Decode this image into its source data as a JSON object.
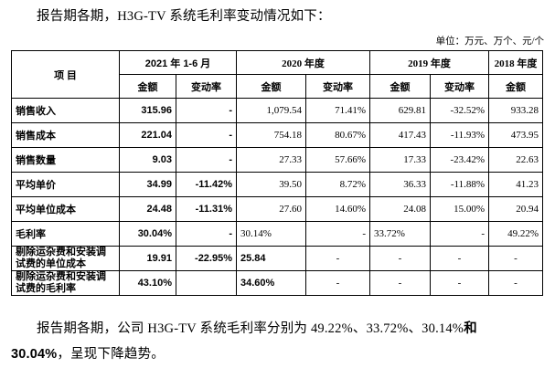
{
  "intro": "报告期各期，H3G-TV 系统毛利率变动情况如下：",
  "unit": "单位：万元、万个、元/个",
  "header": {
    "item": "项 目",
    "periods": [
      "2021 年 1-6 月",
      "2020 年度",
      "2019 年度",
      "2018 年度"
    ],
    "sub": [
      "金额",
      "变动率",
      "金额",
      "变动率",
      "金额",
      "变动率",
      "金额"
    ]
  },
  "rows": [
    {
      "label": "销售收入",
      "cells": [
        "315.96",
        "-",
        "1,079.54",
        "71.41%",
        "629.81",
        "-32.52%",
        "933.28"
      ]
    },
    {
      "label": "销售成本",
      "cells": [
        "221.04",
        "-",
        "754.18",
        "80.67%",
        "417.43",
        "-11.93%",
        "473.95"
      ]
    },
    {
      "label": "销售数量",
      "cells": [
        "9.03",
        "-",
        "27.33",
        "57.66%",
        "17.33",
        "-23.42%",
        "22.63"
      ]
    },
    {
      "label": "平均单价",
      "cells": [
        "34.99",
        "-11.42%",
        "39.50",
        "8.72%",
        "36.33",
        "-11.88%",
        "41.23"
      ]
    },
    {
      "label": "平均单位成本",
      "cells": [
        "24.48",
        "-11.31%",
        "27.60",
        "14.60%",
        "24.08",
        "15.00%",
        "20.94"
      ]
    },
    {
      "label": "毛利率",
      "cells": [
        "30.04%",
        "-",
        "30.14%",
        "-",
        "33.72%",
        "-",
        "49.22%"
      ]
    },
    {
      "label": "剔除运杂费和安装调试费的单位成本",
      "cells": [
        "19.91",
        "-22.95%",
        "25.84",
        "-",
        "-",
        "-",
        "-"
      ]
    },
    {
      "label": "剔除运杂费和安装调试费的毛利率",
      "cells": [
        "43.10%",
        "",
        "34.60%",
        "-",
        "-",
        "-",
        "-"
      ]
    }
  ],
  "conclusion_a": "报告期各期，公司 H3G-TV 系统毛利率分别为 49.22%、33.72%、30.14%",
  "conclusion_and": "和",
  "conclusion_b": "30.04%",
  "conclusion_c": "，呈现下降趋势。"
}
